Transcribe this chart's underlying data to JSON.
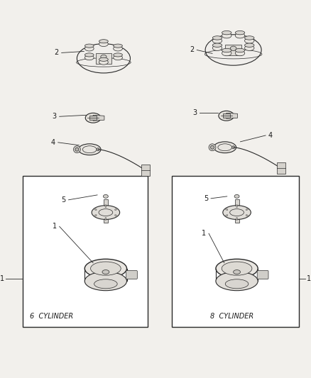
{
  "background_color": "#f2f0ec",
  "line_color": "#2a2a2a",
  "text_color": "#1a1a1a",
  "box_color": "#ffffff",
  "label_6cyl": "6  CYLINDER",
  "label_8cyl": "8  CYLINDER",
  "fig_width": 4.38,
  "fig_height": 5.33,
  "dpi": 100
}
